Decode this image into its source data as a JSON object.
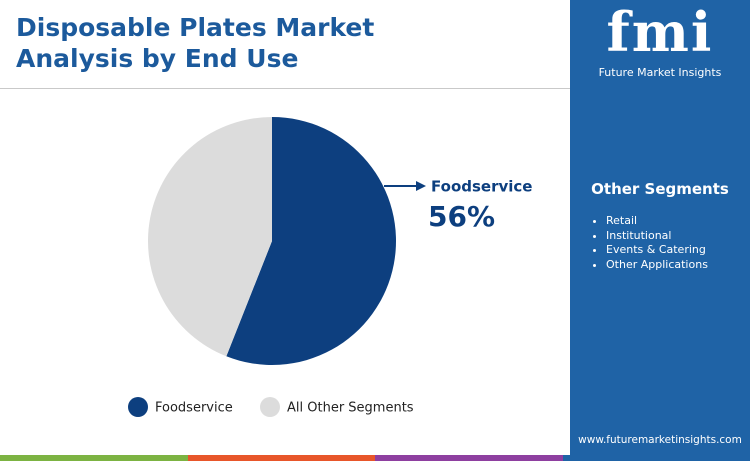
{
  "chart_data": {
    "type": "pie",
    "title": "Disposable Plates Market Analysis by End Use",
    "categories": [
      "Foodservice",
      "All Other Segments"
    ],
    "values": [
      56,
      44
    ],
    "value_labels": [
      "56%",
      null
    ],
    "colors": [
      "#0d3f7f",
      "#dcdcdc"
    ]
  },
  "sidebar": {
    "logo": "fmi",
    "brand": "Future Market Insights",
    "heading": "Other Segments",
    "items": [
      "Retail",
      "Institutional",
      "Events & Catering",
      "Other Applications"
    ],
    "url": "www.futuremarketinsights.com"
  }
}
